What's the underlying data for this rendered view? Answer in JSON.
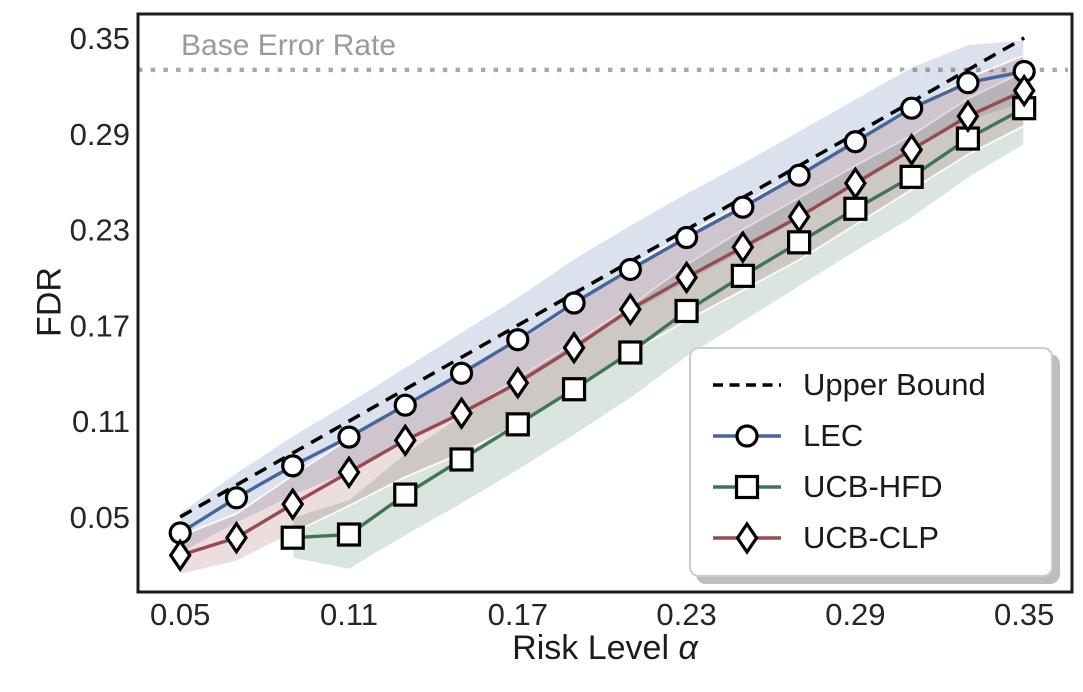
{
  "chart_data": {
    "type": "line",
    "title": "",
    "xlabel": "Risk Level α",
    "ylabel": "FDR",
    "xlim": [
      0.035,
      0.367
    ],
    "ylim": [
      0.003,
      0.365
    ],
    "x_ticks": [
      0.05,
      0.11,
      0.17,
      0.23,
      0.29,
      0.35
    ],
    "y_ticks": [
      0.05,
      0.11,
      0.17,
      0.23,
      0.29,
      0.35
    ],
    "grid": false,
    "legend_position": "lower right",
    "base_error_rate": {
      "label": "Base Error Rate",
      "value": 0.33,
      "color": "#a9a9a9",
      "label_color": "#9b9b9b",
      "style": "dotted"
    },
    "upper_bound": {
      "label": "Upper Bound",
      "x": [
        0.05,
        0.35
      ],
      "y": [
        0.05,
        0.35
      ],
      "color": "#000000",
      "style": "dashed"
    },
    "series": [
      {
        "name": "LEC",
        "color": "#44659e",
        "marker": "circle",
        "x": [
          0.05,
          0.07,
          0.09,
          0.11,
          0.13,
          0.15,
          0.17,
          0.19,
          0.21,
          0.23,
          0.25,
          0.27,
          0.29,
          0.31,
          0.33,
          0.35
        ],
        "y": [
          0.04,
          0.062,
          0.082,
          0.1,
          0.12,
          0.14,
          0.161,
          0.184,
          0.205,
          0.225,
          0.244,
          0.264,
          0.285,
          0.306,
          0.322,
          0.329
        ],
        "band_halfwidth": [
          0.013,
          0.016,
          0.019,
          0.022,
          0.024,
          0.026,
          0.027,
          0.028,
          0.028,
          0.028,
          0.028,
          0.028,
          0.027,
          0.026,
          0.024,
          0.02
        ]
      },
      {
        "name": "UCB-HFD",
        "color": "#3e7457",
        "marker": "square",
        "x": [
          0.09,
          0.11,
          0.13,
          0.15,
          0.17,
          0.19,
          0.21,
          0.23,
          0.25,
          0.27,
          0.29,
          0.31,
          0.33,
          0.35
        ],
        "y": [
          0.037,
          0.039,
          0.064,
          0.086,
          0.108,
          0.13,
          0.153,
          0.179,
          0.201,
          0.222,
          0.243,
          0.263,
          0.287,
          0.306
        ],
        "band_halfwidth": [
          0.013,
          0.022,
          0.026,
          0.028,
          0.029,
          0.029,
          0.029,
          0.029,
          0.029,
          0.028,
          0.027,
          0.026,
          0.025,
          0.023
        ]
      },
      {
        "name": "UCB-CLP",
        "color": "#9a4a4e",
        "marker": "diamond",
        "x": [
          0.05,
          0.07,
          0.09,
          0.11,
          0.13,
          0.15,
          0.17,
          0.19,
          0.21,
          0.23,
          0.25,
          0.27,
          0.29,
          0.31,
          0.33,
          0.35
        ],
        "y": [
          0.026,
          0.037,
          0.058,
          0.078,
          0.098,
          0.115,
          0.134,
          0.156,
          0.18,
          0.2,
          0.219,
          0.238,
          0.259,
          0.28,
          0.301,
          0.317
        ],
        "band_halfwidth": [
          0.012,
          0.015,
          0.018,
          0.021,
          0.023,
          0.025,
          0.026,
          0.027,
          0.027,
          0.027,
          0.027,
          0.027,
          0.026,
          0.025,
          0.024,
          0.022
        ]
      }
    ]
  },
  "labels": {
    "xlabel_prefix": "Risk Level ",
    "xlabel_symbol": "α"
  },
  "style": {
    "spine_color": "#1c1c1c",
    "tick_color": "#262626",
    "marker_fill": "#ffffff",
    "marker_edge": "#000000"
  }
}
